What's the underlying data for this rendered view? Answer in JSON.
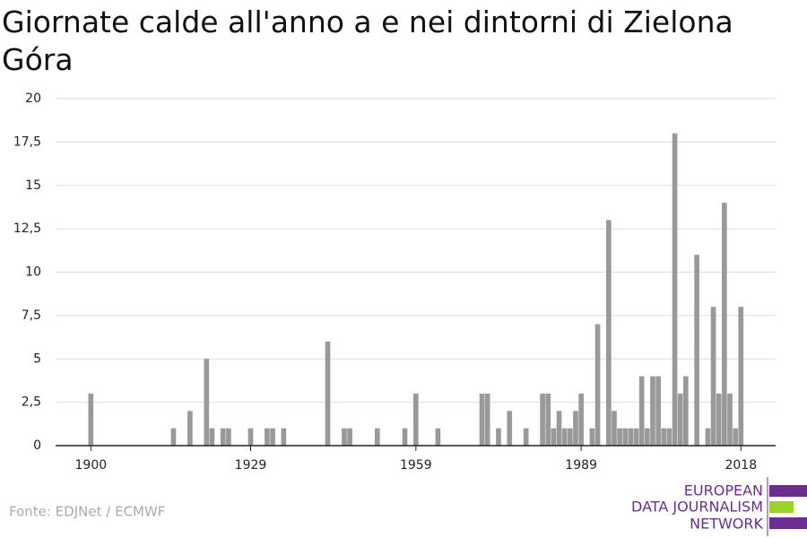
{
  "chart_data": {
    "type": "bar",
    "title": "Giornate calde all'anno a e nei dintorni di Zielona Góra",
    "source": "Fonte: EDJNet / ECMWF",
    "logo": [
      "EUROPEAN",
      "DATA JOURNALISM",
      "NETWORK"
    ],
    "color": "#999999",
    "x": [
      1900,
      1915,
      1918,
      1921,
      1922,
      1924,
      1925,
      1929,
      1932,
      1933,
      1935,
      1943,
      1946,
      1947,
      1952,
      1957,
      1959,
      1963,
      1971,
      1972,
      1974,
      1976,
      1979,
      1982,
      1983,
      1984,
      1985,
      1986,
      1987,
      1988,
      1989,
      1991,
      1992,
      1994,
      1995,
      1996,
      1997,
      1998,
      1999,
      2000,
      2001,
      2002,
      2003,
      2004,
      2005,
      2006,
      2007,
      2008,
      2010,
      2012,
      2013,
      2014,
      2015,
      2016,
      2017,
      2018
    ],
    "values": [
      3,
      1,
      2,
      5,
      1,
      1,
      1,
      1,
      1,
      1,
      1,
      6,
      1,
      1,
      1,
      1,
      3,
      1,
      3,
      3,
      1,
      2,
      1,
      3,
      3,
      1,
      2,
      1,
      1,
      2,
      3,
      1,
      7,
      13,
      2,
      1,
      1,
      1,
      1,
      4,
      1,
      4,
      4,
      1,
      1,
      18,
      3,
      4,
      11,
      1,
      8,
      3,
      14,
      3,
      1,
      8
    ],
    "xlim": [
      1893.6,
      2024.3
    ],
    "xticks": [
      1900,
      1929,
      1959,
      1989,
      2018
    ],
    "ylim": [
      0,
      20
    ],
    "yticks": [
      0,
      {
        "value": 2.5,
        "label": "2,5"
      },
      5,
      {
        "value": 7.5,
        "label": "7,5"
      },
      10,
      {
        "value": 12.5,
        "label": "12,5"
      },
      15,
      {
        "value": 17.5,
        "label": "17,5"
      },
      20
    ],
    "grid": true
  }
}
